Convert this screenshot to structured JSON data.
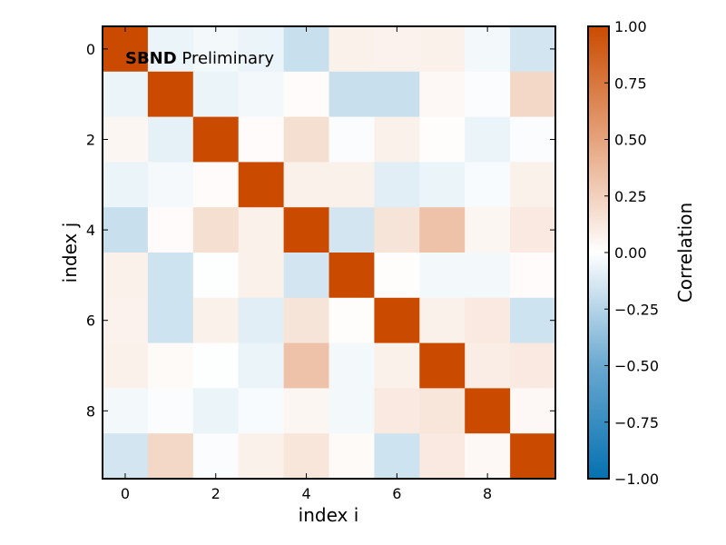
{
  "chart_data": {
    "type": "heatmap",
    "xlabel": "index i",
    "ylabel": "index j",
    "annotation": {
      "bold": "SBND",
      "text": " Preliminary"
    },
    "x_ticks": [
      "0",
      "2",
      "4",
      "6",
      "8"
    ],
    "y_ticks": [
      "0",
      "2",
      "4",
      "6",
      "8"
    ],
    "colorbar": {
      "label": "Correlation",
      "range": [
        -1.0,
        1.0
      ],
      "ticks": [
        "1.00",
        "0.75",
        "0.50",
        "0.25",
        "0.00",
        "−0.25",
        "−0.50",
        "−0.75",
        "−1.00"
      ],
      "tick_values": [
        1.0,
        0.75,
        0.5,
        0.25,
        0.0,
        -0.25,
        -0.5,
        -0.75,
        -1.0
      ],
      "negative_color": "#0571b0",
      "zero_color": "#ffffff",
      "positive_color": "#ca4b00"
    },
    "matrix": [
      [
        1.0,
        -0.08,
        -0.05,
        -0.08,
        -0.22,
        0.08,
        0.07,
        0.08,
        -0.05,
        -0.18
      ],
      [
        -0.08,
        1.0,
        -0.08,
        -0.05,
        0.02,
        -0.22,
        -0.22,
        0.04,
        -0.02,
        0.22
      ],
      [
        0.05,
        -0.1,
        1.0,
        0.02,
        0.18,
        -0.02,
        0.08,
        0.01,
        -0.08,
        -0.02
      ],
      [
        -0.08,
        -0.04,
        0.02,
        1.0,
        0.08,
        0.08,
        -0.12,
        -0.08,
        -0.03,
        0.08
      ],
      [
        -0.22,
        0.02,
        0.18,
        0.08,
        1.0,
        -0.18,
        0.15,
        0.34,
        0.05,
        0.12
      ],
      [
        0.08,
        -0.2,
        -0.01,
        0.08,
        -0.18,
        1.0,
        0.01,
        -0.05,
        -0.05,
        0.02
      ],
      [
        0.07,
        -0.2,
        0.08,
        -0.12,
        0.15,
        0.01,
        1.0,
        0.08,
        0.12,
        -0.2
      ],
      [
        0.08,
        0.03,
        -0.01,
        -0.08,
        0.34,
        -0.05,
        0.08,
        1.0,
        0.1,
        0.12
      ],
      [
        -0.05,
        -0.02,
        -0.08,
        -0.03,
        0.05,
        -0.05,
        0.12,
        0.14,
        1.0,
        0.04
      ],
      [
        -0.18,
        0.22,
        -0.02,
        0.08,
        0.14,
        0.03,
        -0.2,
        0.12,
        0.04,
        1.0
      ]
    ]
  }
}
